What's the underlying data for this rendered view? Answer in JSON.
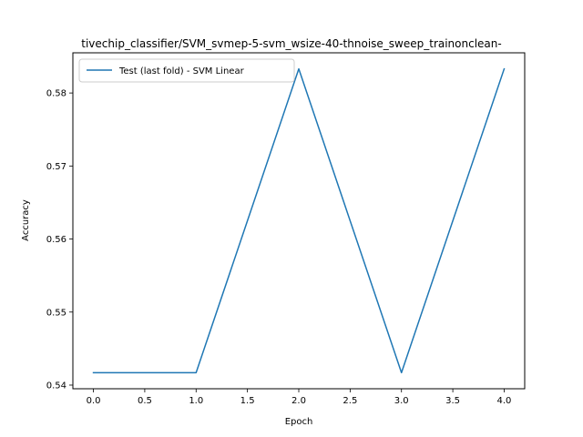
{
  "chart_data": {
    "type": "line",
    "title": "tivechip_classifier/SVM_svmep-5-svm_wsize-40-thnoise_sweep_trainonclean-",
    "xlabel": "Epoch",
    "ylabel": "Accuracy",
    "xlim": [
      -0.2,
      4.2
    ],
    "ylim": [
      0.5395,
      0.5855
    ],
    "x_ticks": [
      0.0,
      0.5,
      1.0,
      1.5,
      2.0,
      2.5,
      3.0,
      3.5,
      4.0
    ],
    "x_tick_labels": [
      "0.0",
      "0.5",
      "1.0",
      "1.5",
      "2.0",
      "2.5",
      "3.0",
      "3.5",
      "4.0"
    ],
    "y_ticks": [
      0.54,
      0.55,
      0.56,
      0.57,
      0.58
    ],
    "y_tick_labels": [
      "0.54",
      "0.55",
      "0.56",
      "0.57",
      "0.58"
    ],
    "grid": false,
    "legend_position": "top-left",
    "series": [
      {
        "name": "Test (last fold) - SVM Linear",
        "color": "#1f77b4",
        "x": [
          0,
          1,
          2,
          3,
          4
        ],
        "y": [
          0.5417,
          0.5417,
          0.5833,
          0.5417,
          0.5833
        ]
      }
    ]
  }
}
